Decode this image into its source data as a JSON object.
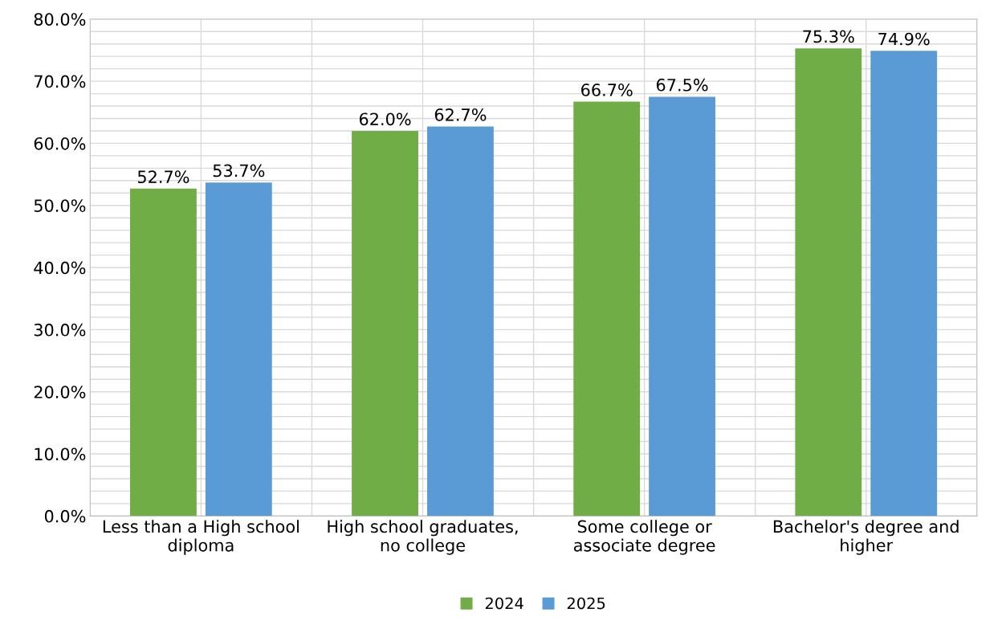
{
  "chart_data": {
    "type": "bar",
    "categories": [
      "Less than a High school\ndiploma",
      "High school graduates,\nno college",
      "Some college or\nassociate degree",
      "Bachelor's degree and\nhigher"
    ],
    "series": [
      {
        "name": "2024",
        "color": "#70ad47",
        "values": [
          52.7,
          62.0,
          66.7,
          75.3
        ],
        "value_labels": [
          "52.7%",
          "62.0%",
          "66.7%",
          "75.3%"
        ]
      },
      {
        "name": "2025",
        "color": "#5b9bd5",
        "values": [
          53.7,
          62.7,
          67.5,
          74.9
        ],
        "value_labels": [
          "53.7%",
          "62.7%",
          "67.5%",
          "74.9%"
        ]
      }
    ],
    "ylim": [
      0,
      80
    ],
    "yticks": [
      {
        "value": 0,
        "label": "0.0%"
      },
      {
        "value": 2,
        "label": null
      },
      {
        "value": 4,
        "label": null
      },
      {
        "value": 6,
        "label": null
      },
      {
        "value": 8,
        "label": null
      },
      {
        "value": 10,
        "label": "10.0%"
      },
      {
        "value": 12,
        "label": null
      },
      {
        "value": 14,
        "label": null
      },
      {
        "value": 16,
        "label": null
      },
      {
        "value": 18,
        "label": null
      },
      {
        "value": 20,
        "label": "20.0%"
      },
      {
        "value": 22,
        "label": null
      },
      {
        "value": 24,
        "label": null
      },
      {
        "value": 26,
        "label": null
      },
      {
        "value": 28,
        "label": null
      },
      {
        "value": 30,
        "label": "30.0%"
      },
      {
        "value": 32,
        "label": null
      },
      {
        "value": 34,
        "label": null
      },
      {
        "value": 36,
        "label": null
      },
      {
        "value": 38,
        "label": null
      },
      {
        "value": 40,
        "label": "40.0%"
      },
      {
        "value": 42,
        "label": null
      },
      {
        "value": 44,
        "label": null
      },
      {
        "value": 46,
        "label": null
      },
      {
        "value": 48,
        "label": null
      },
      {
        "value": 50,
        "label": "50.0%"
      },
      {
        "value": 52,
        "label": null
      },
      {
        "value": 54,
        "label": null
      },
      {
        "value": 56,
        "label": null
      },
      {
        "value": 58,
        "label": null
      },
      {
        "value": 60,
        "label": "60.0%"
      },
      {
        "value": 62,
        "label": null
      },
      {
        "value": 64,
        "label": null
      },
      {
        "value": 66,
        "label": null
      },
      {
        "value": 68,
        "label": null
      },
      {
        "value": 70,
        "label": "70.0%"
      },
      {
        "value": 72,
        "label": null
      },
      {
        "value": 74,
        "label": null
      },
      {
        "value": 76,
        "label": null
      },
      {
        "value": 78,
        "label": null
      },
      {
        "value": 80,
        "label": "80.0%"
      }
    ],
    "grid": true,
    "legend": "bottom"
  }
}
